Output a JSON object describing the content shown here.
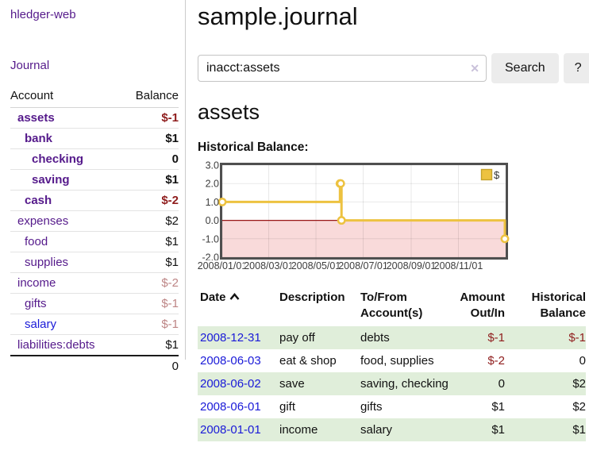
{
  "app": {
    "brand": "hledger-web",
    "nav_journal": "Journal"
  },
  "colors": {
    "link_purple": "#551a8b",
    "link_blue": "#1a1ad8",
    "negative_strong": "#8f1d1d",
    "negative_muted": "#bd8585",
    "row_green": "#e0eeda",
    "divider": "#cccccc",
    "chart_yellow": "#edc240"
  },
  "sidebar": {
    "account_header": "Account",
    "balance_header": "Balance",
    "total": "0",
    "accounts": [
      {
        "name": "assets",
        "balance": "$-1",
        "depth": 1,
        "bold": true,
        "balance_style": "strong-negative",
        "link_style": "purple"
      },
      {
        "name": "bank",
        "balance": "$1",
        "depth": 2,
        "bold": true,
        "balance_style": "normal",
        "link_style": "purple"
      },
      {
        "name": "checking",
        "balance": "0",
        "depth": 3,
        "bold": true,
        "balance_style": "normal",
        "link_style": "purple"
      },
      {
        "name": "saving",
        "balance": "$1",
        "depth": 3,
        "bold": true,
        "balance_style": "normal",
        "link_style": "purple"
      },
      {
        "name": "cash",
        "balance": "$-2",
        "depth": 2,
        "bold": true,
        "balance_style": "strong-negative",
        "link_style": "purple"
      },
      {
        "name": "expenses",
        "balance": "$2",
        "depth": 1,
        "bold": false,
        "balance_style": "normal",
        "link_style": "purple"
      },
      {
        "name": "food",
        "balance": "$1",
        "depth": 2,
        "bold": false,
        "balance_style": "normal",
        "link_style": "purple"
      },
      {
        "name": "supplies",
        "balance": "$1",
        "depth": 2,
        "bold": false,
        "balance_style": "normal",
        "link_style": "purple"
      },
      {
        "name": "income",
        "balance": "$-2",
        "depth": 1,
        "bold": false,
        "balance_style": "muted-negative",
        "link_style": "purple"
      },
      {
        "name": "gifts",
        "balance": "$-1",
        "depth": 2,
        "bold": false,
        "balance_style": "muted-negative",
        "link_style": "purple"
      },
      {
        "name": "salary",
        "balance": "$-1",
        "depth": 2,
        "bold": false,
        "balance_style": "muted-negative",
        "link_style": "blue"
      },
      {
        "name": "liabilities:debts",
        "balance": "$1",
        "depth": 1,
        "bold": false,
        "balance_style": "normal",
        "link_style": "purple"
      }
    ]
  },
  "main": {
    "title": "sample.journal",
    "search": {
      "value": "inacct:assets",
      "clear_icon": "✕",
      "search_label": "Search",
      "help_label": "?"
    },
    "account_heading": "assets"
  },
  "chart_data": {
    "type": "line",
    "title": "Historical Balance:",
    "step": true,
    "legend_position": "top-right",
    "xlim": [
      "2008/01/01",
      "2009/01/01"
    ],
    "ylim": [
      -2,
      3
    ],
    "yticks": [
      "3.0",
      "2.0",
      "1.0",
      "0.0",
      "-1.0",
      "-2.0"
    ],
    "xticks": [
      "2008/01/01",
      "2008/03/01",
      "2008/05/01",
      "2008/07/01",
      "2008/09/01",
      "2008/11/01"
    ],
    "series": [
      {
        "name": "$",
        "color": "#edc240",
        "points": [
          [
            "2008/01/01",
            1
          ],
          [
            "2008/06/01",
            2
          ],
          [
            "2008/06/02",
            2
          ],
          [
            "2008/06/03",
            0
          ],
          [
            "2008/12/31",
            -1
          ]
        ]
      }
    ],
    "negative_fill": "#f9dada",
    "zero_line_color": "#991717",
    "grid": true
  },
  "register": {
    "columns": [
      "Date",
      "Description",
      "To/From Account(s)",
      "Amount Out/In",
      "Historical Balance"
    ],
    "sort": {
      "column": "Date",
      "direction": "ascending"
    },
    "rows": [
      {
        "date": "2008-12-31",
        "description": "pay off",
        "accounts": "debts",
        "amount": "$-1",
        "balance": "$-1"
      },
      {
        "date": "2008-06-03",
        "description": "eat & shop",
        "accounts": "food, supplies",
        "amount": "$-2",
        "balance": "0"
      },
      {
        "date": "2008-06-02",
        "description": "save",
        "accounts": "saving, checking",
        "amount": "0",
        "balance": "$2"
      },
      {
        "date": "2008-06-01",
        "description": "gift",
        "accounts": "gifts",
        "amount": "$1",
        "balance": "$2"
      },
      {
        "date": "2008-01-01",
        "description": "income",
        "accounts": "salary",
        "amount": "$1",
        "balance": "$1"
      }
    ]
  }
}
